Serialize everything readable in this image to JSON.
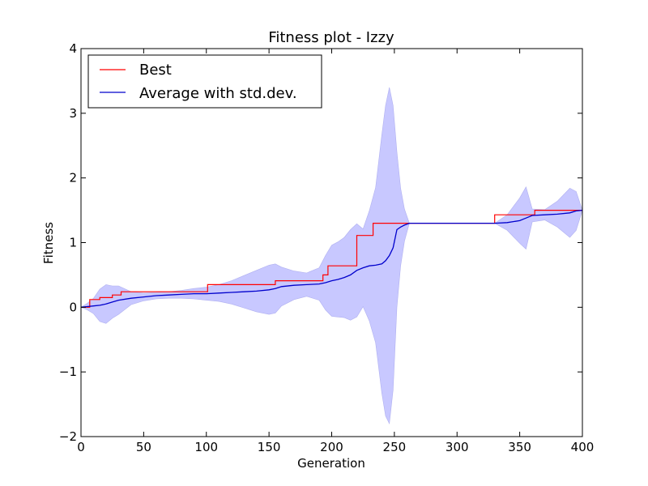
{
  "chart_data": {
    "type": "line",
    "title": "Fitness plot - Izzy",
    "xlabel": "Generation",
    "ylabel": "Fitness",
    "xlim": [
      0,
      400
    ],
    "ylim": [
      -2,
      4
    ],
    "xticks": [
      "0",
      "50",
      "100",
      "150",
      "200",
      "250",
      "300",
      "350",
      "400"
    ],
    "yticks": [
      "−2",
      "−1",
      "0",
      "1",
      "2",
      "3",
      "4"
    ],
    "grid": false,
    "legend_position": "top-left",
    "series": [
      {
        "name": "Best",
        "color": "#ff0000",
        "style": "step",
        "points": [
          [
            0,
            0.0
          ],
          [
            7,
            0.0
          ],
          [
            7,
            0.12
          ],
          [
            15,
            0.12
          ],
          [
            15,
            0.15
          ],
          [
            25,
            0.15
          ],
          [
            25,
            0.19
          ],
          [
            32,
            0.19
          ],
          [
            32,
            0.24
          ],
          [
            101,
            0.24
          ],
          [
            101,
            0.35
          ],
          [
            155,
            0.35
          ],
          [
            155,
            0.41
          ],
          [
            193,
            0.41
          ],
          [
            193,
            0.5
          ],
          [
            197,
            0.5
          ],
          [
            197,
            0.64
          ],
          [
            220,
            0.64
          ],
          [
            220,
            1.11
          ],
          [
            233,
            1.11
          ],
          [
            233,
            1.3
          ],
          [
            330,
            1.3
          ],
          [
            330,
            1.43
          ],
          [
            362,
            1.43
          ],
          [
            362,
            1.5
          ],
          [
            400,
            1.5
          ]
        ]
      },
      {
        "name": "Average with std.dev.",
        "color": "#0000cc",
        "band_color": "#c8c8ff",
        "x": [
          0,
          5,
          10,
          15,
          20,
          25,
          30,
          40,
          50,
          60,
          70,
          80,
          90,
          100,
          110,
          120,
          130,
          140,
          150,
          155,
          160,
          170,
          180,
          190,
          195,
          200,
          205,
          210,
          215,
          220,
          225,
          230,
          235,
          240,
          243,
          246,
          249,
          252,
          255,
          258,
          262,
          270,
          300,
          330,
          340,
          350,
          355,
          360,
          370,
          380,
          390,
          395,
          400
        ],
        "mean": [
          0.0,
          0.01,
          0.02,
          0.03,
          0.05,
          0.08,
          0.11,
          0.14,
          0.16,
          0.18,
          0.19,
          0.2,
          0.21,
          0.21,
          0.22,
          0.23,
          0.24,
          0.25,
          0.27,
          0.29,
          0.32,
          0.34,
          0.35,
          0.36,
          0.38,
          0.41,
          0.43,
          0.46,
          0.5,
          0.57,
          0.61,
          0.64,
          0.65,
          0.67,
          0.72,
          0.8,
          0.92,
          1.2,
          1.24,
          1.27,
          1.3,
          1.3,
          1.3,
          1.3,
          1.31,
          1.34,
          1.38,
          1.42,
          1.43,
          1.44,
          1.46,
          1.49,
          1.5
        ],
        "std": [
          0.0,
          0.05,
          0.12,
          0.25,
          0.3,
          0.25,
          0.22,
          0.1,
          0.06,
          0.05,
          0.05,
          0.06,
          0.08,
          0.1,
          0.13,
          0.18,
          0.25,
          0.32,
          0.38,
          0.38,
          0.3,
          0.22,
          0.18,
          0.25,
          0.42,
          0.55,
          0.58,
          0.62,
          0.7,
          0.72,
          0.6,
          0.85,
          1.2,
          2.0,
          2.4,
          2.6,
          2.2,
          1.2,
          0.6,
          0.25,
          0.0,
          0.0,
          0.0,
          0.0,
          0.12,
          0.35,
          0.48,
          0.1,
          0.08,
          0.2,
          0.38,
          0.3,
          0.0
        ]
      }
    ]
  }
}
